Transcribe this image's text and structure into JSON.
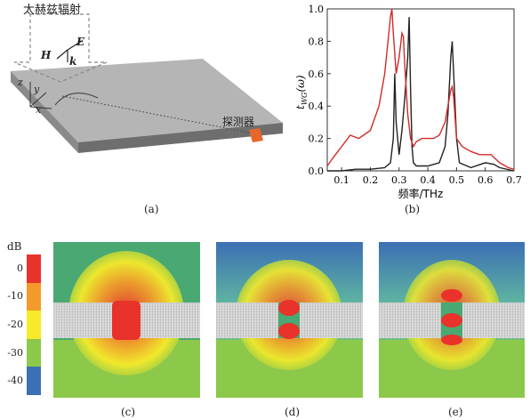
{
  "panel_a": {
    "source_label": "太赫兹辐射",
    "detector_label": "探测器",
    "field_labels": {
      "h": "H",
      "e": "E",
      "k": "k"
    },
    "axis_labels": {
      "x": "x",
      "y": "y",
      "z": "z"
    },
    "caption": "(a)"
  },
  "panel_b": {
    "caption": "(b)",
    "colors": {
      "black": "#222222",
      "red": "#d42a2a"
    }
  },
  "colorbar": {
    "unit": "dB",
    "ticks": [
      "0",
      "-10",
      "-20",
      "-30",
      "-40"
    ],
    "colors": [
      "#e8322a",
      "#f39a2a",
      "#f6ea2a",
      "#8cc84a",
      "#3c6fb4"
    ]
  },
  "panel_captions": {
    "c": "(c)",
    "d": "(d)",
    "e": "(e)"
  },
  "chart_data": {
    "type": "line",
    "xlabel": "频率/THz",
    "ylabel": "t_WG(ω)",
    "ylabel_main": "t",
    "ylabel_sub": "WG",
    "ylabel_arg": "(ω)",
    "xlim": [
      0.05,
      0.7
    ],
    "ylim": [
      0,
      1.0
    ],
    "xticks": [
      "0.1",
      "0.2",
      "0.3",
      "0.4",
      "0.5",
      "0.6",
      "0.7"
    ],
    "yticks": [
      "0.0",
      "0.2",
      "0.4",
      "0.6",
      "0.8",
      "1.0"
    ],
    "series": [
      {
        "color": "#222222",
        "x": [
          0.05,
          0.1,
          0.15,
          0.2,
          0.25,
          0.27,
          0.28,
          0.285,
          0.29,
          0.3,
          0.31,
          0.32,
          0.33,
          0.335,
          0.34,
          0.345,
          0.35,
          0.36,
          0.4,
          0.44,
          0.46,
          0.47,
          0.48,
          0.485,
          0.49,
          0.5,
          0.51,
          0.55,
          0.6,
          0.63,
          0.65,
          0.7
        ],
        "y": [
          0.0,
          0.0,
          0.01,
          0.01,
          0.02,
          0.05,
          0.2,
          0.6,
          0.3,
          0.1,
          0.25,
          0.45,
          0.7,
          0.95,
          0.5,
          0.15,
          0.05,
          0.03,
          0.03,
          0.05,
          0.15,
          0.35,
          0.7,
          0.8,
          0.6,
          0.2,
          0.05,
          0.02,
          0.05,
          0.04,
          0.02,
          0.0
        ]
      },
      {
        "color": "#d42a2a",
        "x": [
          0.05,
          0.07,
          0.1,
          0.13,
          0.16,
          0.2,
          0.23,
          0.25,
          0.27,
          0.275,
          0.28,
          0.29,
          0.3,
          0.31,
          0.315,
          0.32,
          0.33,
          0.34,
          0.35,
          0.36,
          0.38,
          0.4,
          0.42,
          0.44,
          0.46,
          0.47,
          0.48,
          0.485,
          0.49,
          0.5,
          0.52,
          0.55,
          0.58,
          0.6,
          0.62,
          0.65,
          0.68,
          0.7
        ],
        "y": [
          0.03,
          0.08,
          0.15,
          0.22,
          0.2,
          0.25,
          0.4,
          0.6,
          0.95,
          1.0,
          0.85,
          0.6,
          0.7,
          0.85,
          0.83,
          0.65,
          0.35,
          0.2,
          0.15,
          0.18,
          0.2,
          0.2,
          0.2,
          0.22,
          0.3,
          0.4,
          0.5,
          0.52,
          0.45,
          0.2,
          0.15,
          0.12,
          0.1,
          0.1,
          0.1,
          0.05,
          0.02,
          0.01
        ]
      }
    ]
  }
}
